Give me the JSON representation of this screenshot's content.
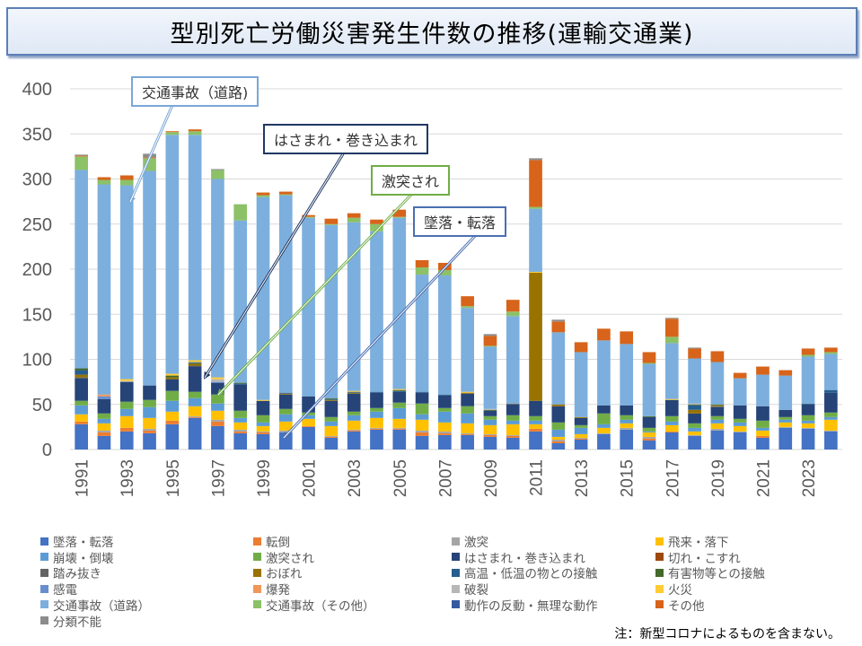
{
  "title": "型別死亡労働災害発生件数の推移(運輸交通業)",
  "note": "注：新型コロナによるものを含まない。",
  "callouts": [
    {
      "label": "交通事故（道路)",
      "target": "交通事故（道路）",
      "color": "#7aa7d6"
    },
    {
      "label": "はさまれ・巻き込まれ",
      "target": "はさまれ・巻き込まれ",
      "color": "#203864"
    },
    {
      "label": "激突され",
      "target": "激突され",
      "color": "#70ad47"
    },
    {
      "label": "墜落・転落",
      "target": "墜落・転落",
      "color": "#4472c4"
    }
  ],
  "chart_data": {
    "type": "bar",
    "stacked": true,
    "title": "型別死亡労働災害発生件数の推移(運輸交通業)",
    "xlabel": "",
    "ylabel": "",
    "ylim": [
      0,
      400
    ],
    "yticks": [
      0,
      50,
      100,
      150,
      200,
      250,
      300,
      350,
      400
    ],
    "grid": true,
    "legend_position": "bottom",
    "categories": [
      "1991",
      "1992",
      "1993",
      "1994",
      "1995",
      "1996",
      "1997",
      "1998",
      "1999",
      "2000",
      "2001",
      "2002",
      "2003",
      "2004",
      "2005",
      "2006",
      "2007",
      "2008",
      "2009",
      "2010",
      "2011",
      "2012",
      "2013",
      "2014",
      "2015",
      "2016",
      "2017",
      "2018",
      "2019",
      "2020",
      "2021",
      "2022",
      "2023",
      "2024"
    ],
    "xtick_labels": [
      "1991",
      "1993",
      "1995",
      "1997",
      "1999",
      "2001",
      "2003",
      "2005",
      "2007",
      "2009",
      "2011",
      "2013",
      "2015",
      "2017",
      "2019",
      "2021",
      "2023"
    ],
    "series": [
      {
        "name": "墜落・転落",
        "color": "#4472c4",
        "values": [
          28,
          15,
          20,
          18,
          28,
          35,
          26,
          18,
          17,
          19,
          25,
          13,
          20,
          22,
          22,
          15,
          16,
          16,
          14,
          13,
          20,
          7,
          11,
          17,
          22,
          10,
          19,
          15,
          21,
          19,
          13,
          24,
          23,
          20
        ]
      },
      {
        "name": "転倒",
        "color": "#ed7d31",
        "values": [
          3,
          4,
          4,
          3,
          4,
          1,
          5,
          2,
          2,
          0,
          1,
          1,
          1,
          1,
          1,
          4,
          2,
          1,
          2,
          2,
          3,
          2,
          1,
          0,
          0,
          2,
          1,
          0,
          0,
          0,
          2,
          0,
          0,
          0
        ]
      },
      {
        "name": "激突",
        "color": "#a5a5a5",
        "values": [
          0,
          2,
          0,
          2,
          0,
          1,
          2,
          2,
          1,
          2,
          0,
          1,
          1,
          1,
          1,
          2,
          2,
          1,
          1,
          1,
          0,
          2,
          1,
          1,
          2,
          2,
          0,
          1,
          2,
          1,
          0,
          1,
          1,
          1
        ]
      },
      {
        "name": "飛来・落下",
        "color": "#ffc000",
        "values": [
          8,
          8,
          13,
          12,
          10,
          11,
          10,
          8,
          6,
          10,
          8,
          11,
          10,
          11,
          10,
          12,
          10,
          11,
          10,
          12,
          5,
          3,
          4,
          6,
          5,
          5,
          7,
          4,
          6,
          6,
          6,
          5,
          5,
          12
        ]
      },
      {
        "name": "崩壊・倒壊",
        "color": "#5b9bd5",
        "values": [
          10,
          5,
          8,
          12,
          12,
          9,
          8,
          5,
          4,
          8,
          4,
          5,
          6,
          7,
          12,
          6,
          12,
          11,
          6,
          4,
          4,
          8,
          7,
          4,
          4,
          1,
          4,
          4,
          4,
          4,
          3,
          3,
          3,
          3
        ]
      },
      {
        "name": "激突され",
        "color": "#70ad47",
        "values": [
          5,
          6,
          8,
          8,
          11,
          7,
          10,
          8,
          8,
          6,
          3,
          5,
          4,
          4,
          6,
          12,
          4,
          8,
          4,
          6,
          5,
          8,
          3,
          12,
          5,
          4,
          6,
          5,
          4,
          4,
          8,
          3,
          6,
          5
        ]
      },
      {
        "name": "はさまれ・巻き込まれ",
        "color": "#264478",
        "values": [
          25,
          16,
          22,
          16,
          13,
          28,
          13,
          29,
          16,
          16,
          18,
          18,
          20,
          17,
          12,
          12,
          14,
          14,
          6,
          12,
          17,
          18,
          8,
          9,
          11,
          12,
          18,
          11,
          10,
          15,
          16,
          8,
          12,
          22
        ]
      },
      {
        "name": "切れ・こすれ",
        "color": "#9e480e",
        "values": [
          0,
          0,
          0,
          0,
          0,
          0,
          0,
          0,
          0,
          0,
          0,
          0,
          0,
          0,
          0,
          0,
          0,
          0,
          0,
          0,
          0,
          0,
          0,
          0,
          0,
          0,
          0,
          0,
          0,
          0,
          0,
          0,
          0,
          0
        ]
      },
      {
        "name": "踏み抜き",
        "color": "#636363",
        "values": [
          1,
          0,
          0,
          0,
          0,
          1,
          0,
          0,
          0,
          0,
          0,
          0,
          0,
          0,
          0,
          0,
          0,
          0,
          0,
          1,
          0,
          0,
          0,
          0,
          0,
          0,
          0,
          0,
          1,
          0,
          0,
          0,
          0,
          0
        ]
      },
      {
        "name": "おぼれ",
        "color": "#997300",
        "values": [
          3,
          0,
          0,
          0,
          2,
          2,
          0,
          0,
          0,
          1,
          0,
          1,
          1,
          0,
          0,
          0,
          0,
          1,
          0,
          0,
          142,
          2,
          1,
          0,
          0,
          0,
          0,
          4,
          1,
          0,
          0,
          0,
          0,
          0
        ]
      },
      {
        "name": "高温・低温の物との接触",
        "color": "#255e91",
        "values": [
          5,
          0,
          0,
          0,
          0,
          0,
          0,
          1,
          0,
          1,
          0,
          1,
          1,
          1,
          1,
          1,
          1,
          0,
          0,
          0,
          0,
          0,
          0,
          0,
          0,
          0,
          0,
          5,
          0,
          0,
          0,
          0,
          1,
          3
        ]
      },
      {
        "name": "有害物等との接触",
        "color": "#43682b",
        "values": [
          2,
          0,
          0,
          0,
          2,
          1,
          0,
          1,
          0,
          0,
          0,
          1,
          0,
          0,
          1,
          0,
          0,
          0,
          1,
          0,
          0,
          0,
          0,
          0,
          0,
          1,
          0,
          1,
          1,
          0,
          0,
          0,
          0,
          0
        ]
      },
      {
        "name": "感電",
        "color": "#698ed0",
        "values": [
          0,
          3,
          0,
          0,
          0,
          1,
          1,
          0,
          0,
          0,
          0,
          0,
          0,
          0,
          0,
          0,
          0,
          0,
          0,
          0,
          0,
          0,
          0,
          0,
          0,
          0,
          0,
          0,
          0,
          0,
          0,
          0,
          0,
          0
        ]
      },
      {
        "name": "爆発",
        "color": "#f1975a",
        "values": [
          0,
          2,
          0,
          0,
          0,
          0,
          0,
          0,
          0,
          0,
          0,
          0,
          0,
          0,
          0,
          0,
          0,
          0,
          0,
          0,
          0,
          0,
          0,
          0,
          0,
          0,
          0,
          0,
          0,
          0,
          0,
          0,
          0,
          0
        ]
      },
      {
        "name": "破裂",
        "color": "#b7b7b7",
        "values": [
          0,
          0,
          1,
          0,
          0,
          0,
          3,
          0,
          0,
          0,
          0,
          0,
          0,
          0,
          0,
          0,
          0,
          0,
          1,
          0,
          0,
          0,
          0,
          0,
          0,
          0,
          0,
          1,
          0,
          0,
          0,
          0,
          0,
          0
        ]
      },
      {
        "name": "火災",
        "color": "#ffcd33",
        "values": [
          0,
          0,
          2,
          0,
          2,
          2,
          2,
          0,
          1,
          0,
          0,
          0,
          1,
          0,
          1,
          0,
          0,
          1,
          0,
          0,
          1,
          0,
          0,
          0,
          0,
          0,
          1,
          0,
          0,
          0,
          0,
          0,
          0,
          0
        ]
      },
      {
        "name": "交通事故（道路）",
        "color": "#7cafdd",
        "values": [
          220,
          233,
          215,
          238,
          265,
          250,
          220,
          180,
          225,
          219,
          198,
          192,
          187,
          178,
          190,
          130,
          132,
          93,
          69,
          97,
          70,
          80,
          72,
          72,
          68,
          58,
          62,
          50,
          47,
          30,
          35,
          38,
          52,
          40
        ]
      },
      {
        "name": "交通事故（その他）",
        "color": "#8cc168",
        "values": [
          15,
          5,
          6,
          14,
          3,
          4,
          10,
          18,
          2,
          1,
          1,
          1,
          5,
          8,
          1,
          8,
          6,
          2,
          1,
          5,
          2,
          0,
          0,
          0,
          0,
          1,
          7,
          0,
          0,
          0,
          0,
          0,
          2,
          2
        ]
      },
      {
        "name": "動作の反動・無理な動作",
        "color": "#335aa1",
        "values": [
          0,
          0,
          0,
          0,
          0,
          0,
          0,
          0,
          0,
          0,
          0,
          0,
          0,
          0,
          0,
          0,
          0,
          0,
          0,
          0,
          0,
          0,
          0,
          0,
          0,
          0,
          0,
          0,
          0,
          0,
          0,
          0,
          0,
          0
        ]
      },
      {
        "name": "その他",
        "color": "#d7641a",
        "values": [
          1,
          3,
          5,
          1,
          1,
          2,
          0,
          0,
          3,
          3,
          2,
          6,
          5,
          5,
          8,
          8,
          8,
          11,
          11,
          13,
          52,
          12,
          11,
          13,
          14,
          12,
          20,
          11,
          12,
          6,
          9,
          6,
          7,
          5
        ]
      },
      {
        "name": "分類不能",
        "color": "#8c8c8c",
        "values": [
          1,
          0,
          0,
          4,
          0,
          0,
          1,
          0,
          0,
          0,
          0,
          0,
          0,
          0,
          0,
          0,
          0,
          0,
          2,
          0,
          2,
          2,
          0,
          0,
          0,
          0,
          1,
          1,
          0,
          0,
          0,
          0,
          0,
          0
        ]
      }
    ]
  }
}
